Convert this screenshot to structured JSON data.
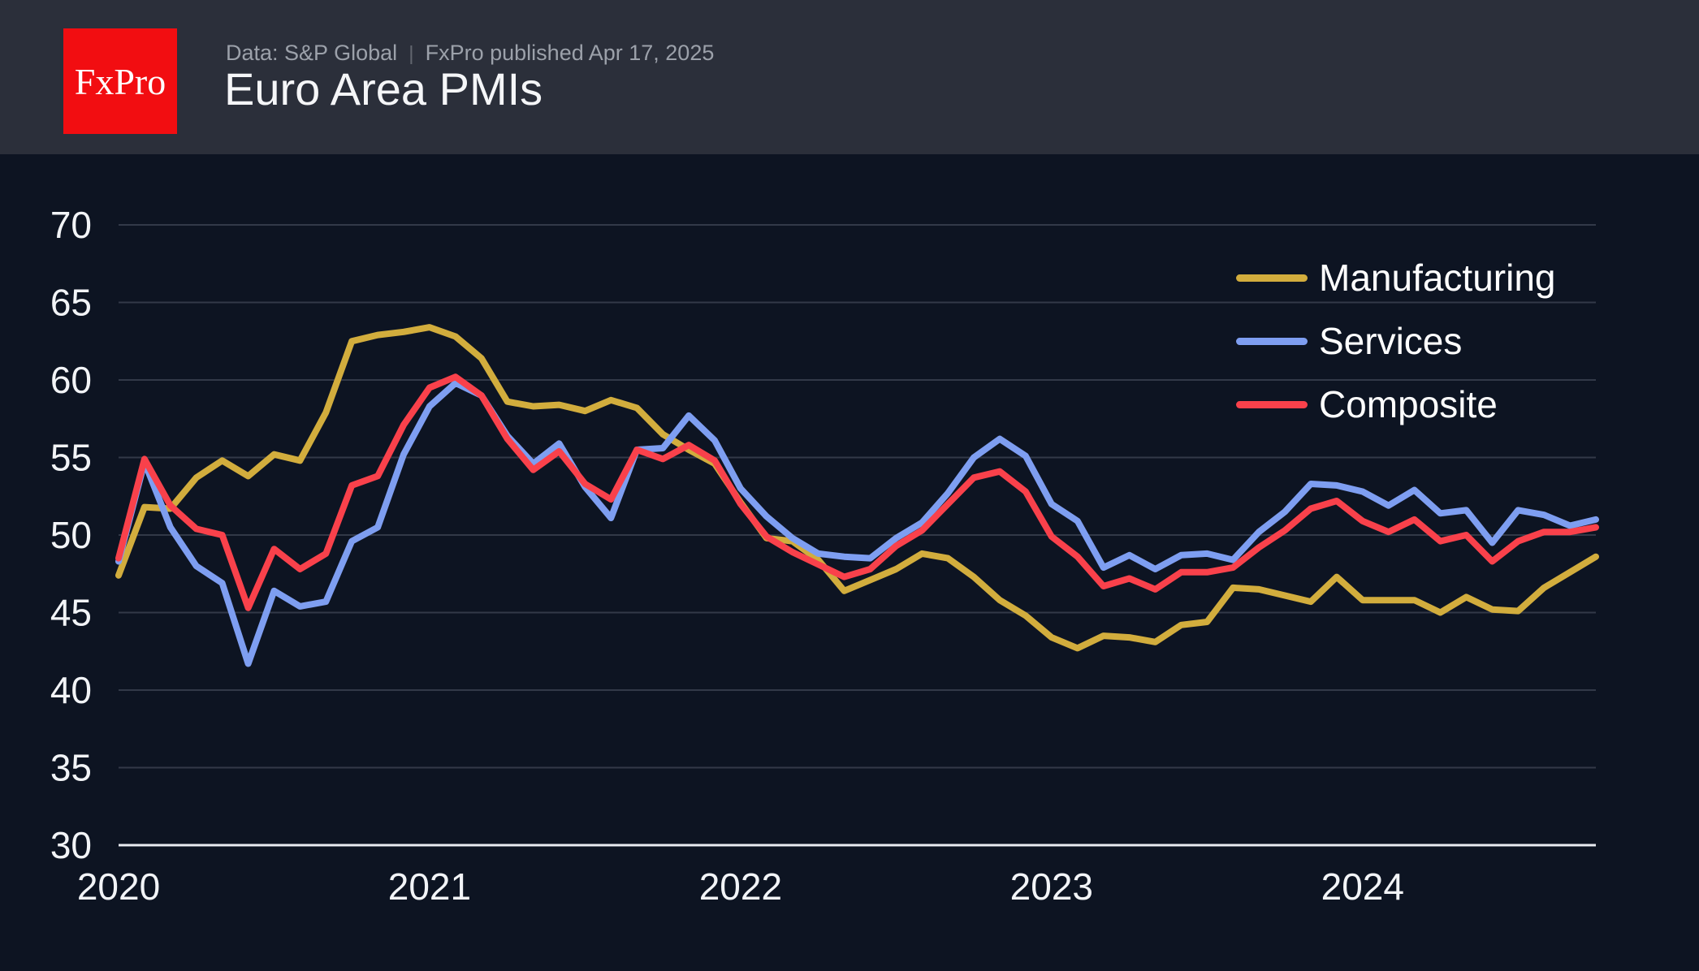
{
  "header": {
    "logo_text": "FxPro",
    "source": "Data: S&P Global",
    "separator": "|",
    "published": "FxPro published Apr 17, 2025",
    "title": "Euro Area PMIs"
  },
  "colors": {
    "background": "#0d1422",
    "header_band": "#2b2f3a",
    "logo_red": "#f20d11",
    "gridline": "#323948",
    "axis_line": "#e9ecf1",
    "tick_text": "#f2f4f7",
    "manufacturing": "#d2ad3d",
    "services": "#7e9ef1",
    "composite": "#f9414b"
  },
  "chart_data": {
    "type": "line",
    "title": "Euro Area PMIs",
    "grid": true,
    "legend_position": "upper right",
    "ylim": [
      30,
      70
    ],
    "yticks": [
      30,
      35,
      40,
      45,
      50,
      55,
      60,
      65,
      70
    ],
    "xticks": [
      {
        "index": 0,
        "label": "2020"
      },
      {
        "index": 12,
        "label": "2021"
      },
      {
        "index": 24,
        "label": "2022"
      },
      {
        "index": 36,
        "label": "2023"
      },
      {
        "index": 48,
        "label": "2024"
      }
    ],
    "x": [
      "2020-06",
      "2020-07",
      "2020-08",
      "2020-09",
      "2020-10",
      "2020-11",
      "2020-12",
      "2021-01",
      "2021-02",
      "2021-03",
      "2021-04",
      "2021-05",
      "2021-06",
      "2021-07",
      "2021-08",
      "2021-09",
      "2021-10",
      "2021-11",
      "2021-12",
      "2022-01",
      "2022-02",
      "2022-03",
      "2022-04",
      "2022-05",
      "2022-06",
      "2022-07",
      "2022-08",
      "2022-09",
      "2022-10",
      "2022-11",
      "2022-12",
      "2023-01",
      "2023-02",
      "2023-03",
      "2023-04",
      "2023-05",
      "2023-06",
      "2023-07",
      "2023-08",
      "2023-09",
      "2023-10",
      "2023-11",
      "2023-12",
      "2024-01",
      "2024-02",
      "2024-03",
      "2024-04",
      "2024-05",
      "2024-06",
      "2024-07",
      "2024-08",
      "2024-09",
      "2024-10",
      "2024-11",
      "2024-12",
      "2025-01",
      "2025-02",
      "2025-03"
    ],
    "series": [
      {
        "name": "Manufacturing",
        "color": "#d2ad3d",
        "values": [
          47.4,
          51.8,
          51.7,
          53.7,
          54.8,
          53.8,
          55.2,
          54.8,
          57.9,
          62.5,
          62.9,
          63.1,
          63.4,
          62.8,
          61.4,
          58.6,
          58.3,
          58.4,
          58.0,
          58.7,
          58.2,
          56.5,
          55.5,
          54.6,
          52.1,
          49.8,
          49.6,
          48.4,
          46.4,
          47.1,
          47.8,
          48.8,
          48.5,
          47.3,
          45.8,
          44.8,
          43.4,
          42.7,
          43.5,
          43.4,
          43.1,
          44.2,
          44.4,
          46.6,
          46.5,
          46.1,
          45.7,
          47.3,
          45.8,
          45.8,
          45.8,
          45.0,
          46.0,
          45.2,
          45.1,
          46.6,
          47.6,
          48.6
        ]
      },
      {
        "name": "Services",
        "color": "#7e9ef1",
        "values": [
          48.3,
          54.7,
          50.5,
          48.0,
          46.9,
          41.7,
          46.4,
          45.4,
          45.7,
          49.6,
          50.5,
          55.2,
          58.3,
          59.8,
          59.0,
          56.4,
          54.6,
          55.9,
          53.1,
          51.1,
          55.5,
          55.6,
          57.7,
          56.1,
          53.0,
          51.2,
          49.8,
          48.8,
          48.6,
          48.5,
          49.8,
          50.8,
          52.7,
          55.0,
          56.2,
          55.1,
          52.0,
          50.9,
          47.9,
          48.7,
          47.8,
          48.7,
          48.8,
          48.4,
          50.2,
          51.5,
          53.3,
          53.2,
          52.8,
          51.9,
          52.9,
          51.4,
          51.6,
          49.5,
          51.6,
          51.3,
          50.6,
          51.0
        ]
      },
      {
        "name": "Composite",
        "color": "#f9414b",
        "values": [
          48.5,
          54.9,
          51.9,
          50.4,
          50.0,
          45.3,
          49.1,
          47.8,
          48.8,
          53.2,
          53.8,
          57.1,
          59.5,
          60.2,
          59.0,
          56.2,
          54.2,
          55.4,
          53.3,
          52.3,
          55.5,
          54.9,
          55.8,
          54.8,
          52.0,
          49.9,
          48.9,
          48.1,
          47.3,
          47.8,
          49.3,
          50.3,
          52.0,
          53.7,
          54.1,
          52.8,
          49.9,
          48.6,
          46.7,
          47.2,
          46.5,
          47.6,
          47.6,
          47.9,
          49.2,
          50.3,
          51.7,
          52.2,
          50.9,
          50.2,
          51.0,
          49.6,
          50.0,
          48.3,
          49.6,
          50.2,
          50.2,
          50.5
        ]
      }
    ]
  }
}
